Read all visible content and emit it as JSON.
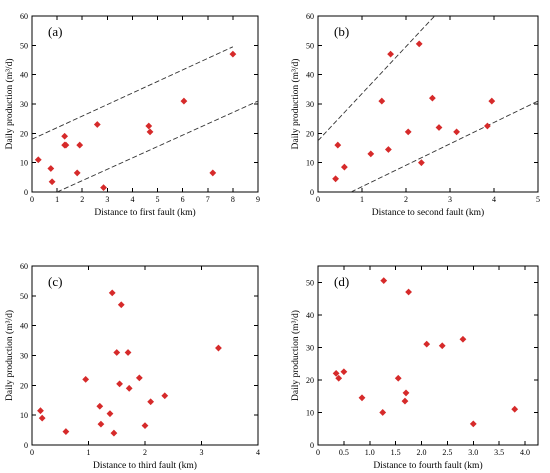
{
  "chart_data": [
    {
      "type": "scatter",
      "panel_label": "(a)",
      "xlabel": "Distance to first  fault (km)",
      "ylabel": "Daily production (m³/d)",
      "xlim": [
        0,
        9
      ],
      "ylim": [
        0,
        60
      ],
      "xticks": [
        0,
        1,
        2,
        3,
        4,
        5,
        6,
        7,
        8,
        9
      ],
      "yticks": [
        0,
        10,
        20,
        30,
        40,
        50,
        60
      ],
      "color": "#d62a2a",
      "x": [
        0.25,
        0.75,
        0.8,
        1.3,
        1.35,
        1.3,
        1.8,
        1.9,
        2.6,
        2.85,
        4.65,
        4.7,
        6.05,
        7.2,
        8.0
      ],
      "y": [
        11,
        8,
        3.5,
        19,
        16,
        16,
        6.5,
        16,
        23,
        1.5,
        22.5,
        20.5,
        31,
        6.5,
        47
      ],
      "trend_lines": [
        {
          "x": [
            0,
            8
          ],
          "y": [
            18,
            49.5
          ]
        },
        {
          "x": [
            1,
            9
          ],
          "y": [
            0,
            31
          ]
        }
      ]
    },
    {
      "type": "scatter",
      "panel_label": "(b)",
      "xlabel": "Distance to second  fault (km)",
      "ylabel": "Daily production (m³/d)",
      "xlim": [
        0,
        5
      ],
      "ylim": [
        0,
        60
      ],
      "xticks": [
        0,
        1,
        2,
        3,
        4,
        5
      ],
      "yticks": [
        0,
        10,
        20,
        30,
        40,
        50,
        60
      ],
      "color": "#d62a2a",
      "x": [
        0.4,
        0.45,
        0.6,
        1.2,
        1.45,
        1.6,
        1.65,
        2.05,
        2.3,
        2.35,
        2.6,
        2.75,
        3.15,
        3.85,
        3.95
      ],
      "y": [
        4.5,
        16,
        8.5,
        13,
        31,
        14.5,
        47,
        20.5,
        50.5,
        10,
        32,
        22,
        20.5,
        22.5,
        31
      ],
      "trend_lines": [
        {
          "x": [
            0,
            2.65
          ],
          "y": [
            17.5,
            60
          ]
        },
        {
          "x": [
            0.75,
            5
          ],
          "y": [
            0,
            31
          ]
        }
      ]
    },
    {
      "type": "scatter",
      "panel_label": "(c)",
      "xlabel": "Distance to third  fault (km)",
      "ylabel": "Daily production (m³/d)",
      "xlim": [
        0,
        4
      ],
      "ylim": [
        0,
        60
      ],
      "xticks": [
        0,
        1,
        2,
        3,
        4
      ],
      "yticks": [
        0,
        10,
        20,
        30,
        40,
        50,
        60
      ],
      "color": "#d62a2a",
      "x": [
        0.15,
        0.18,
        0.6,
        0.95,
        1.2,
        1.22,
        1.38,
        1.42,
        1.45,
        1.5,
        1.55,
        1.58,
        1.7,
        1.72,
        1.9,
        2.0,
        2.1,
        2.35,
        3.3
      ],
      "y": [
        11.5,
        9,
        4.5,
        22,
        13,
        7,
        10.5,
        51,
        4,
        31,
        20.5,
        47,
        31,
        19,
        22.5,
        6.5,
        14.5,
        16.5,
        32.5
      ],
      "trend_lines": []
    },
    {
      "type": "scatter",
      "panel_label": "(d)",
      "xlabel": "Distance to fourth  fault (km)",
      "ylabel": "Daily production (m³/d)",
      "xlim": [
        0,
        4.25
      ],
      "ylim": [
        0,
        55
      ],
      "xticks": [
        0,
        0.5,
        1.0,
        1.5,
        2.0,
        2.5,
        3.0,
        3.5,
        4.0
      ],
      "xtick_labels": [
        "0",
        "0.5",
        "1.0",
        "1.5",
        "2.0",
        "2.5",
        "3.0",
        "3.5",
        "4.0"
      ],
      "yticks": [
        0,
        10,
        20,
        30,
        40,
        50
      ],
      "color": "#d62a2a",
      "x": [
        0.35,
        0.4,
        0.5,
        0.85,
        1.25,
        1.27,
        1.55,
        1.68,
        1.7,
        1.75,
        2.1,
        2.4,
        2.8,
        3.0,
        3.8
      ],
      "y": [
        22,
        20.5,
        22.5,
        14.5,
        10,
        50.5,
        20.5,
        13.5,
        16,
        47,
        31,
        30.5,
        32.5,
        6.5,
        11
      ],
      "trend_lines": []
    }
  ]
}
